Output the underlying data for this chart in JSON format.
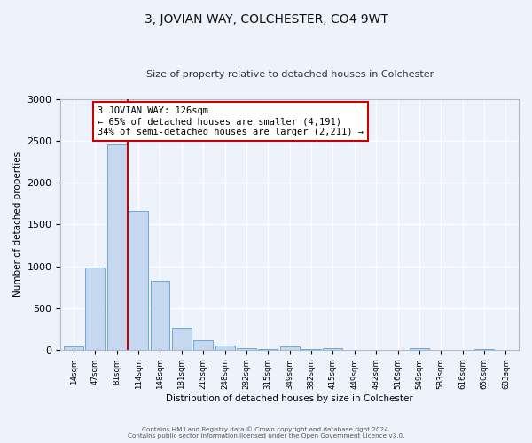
{
  "title": "3, JOVIAN WAY, COLCHESTER, CO4 9WT",
  "subtitle": "Size of property relative to detached houses in Colchester",
  "xlabel": "Distribution of detached houses by size in Colchester",
  "ylabel": "Number of detached properties",
  "bar_labels": [
    "14sqm",
    "47sqm",
    "81sqm",
    "114sqm",
    "148sqm",
    "181sqm",
    "215sqm",
    "248sqm",
    "282sqm",
    "315sqm",
    "349sqm",
    "382sqm",
    "415sqm",
    "449sqm",
    "482sqm",
    "516sqm",
    "549sqm",
    "583sqm",
    "616sqm",
    "650sqm",
    "683sqm"
  ],
  "bar_values": [
    40,
    985,
    2460,
    1660,
    830,
    265,
    115,
    55,
    20,
    5,
    38,
    5,
    20,
    0,
    0,
    0,
    15,
    0,
    0,
    5,
    0
  ],
  "bar_color": "#c5d8f0",
  "bar_edge_color": "#6aaad4",
  "vline_color": "#cc0000",
  "vline_x": 2.5,
  "annotation_text_line1": "3 JOVIAN WAY: 126sqm",
  "annotation_text_line2": "← 65% of detached houses are smaller (4,191)",
  "annotation_text_line3": "34% of semi-detached houses are larger (2,211) →",
  "annotation_box_facecolor": "#ffffff",
  "annotation_box_edgecolor": "#cc0000",
  "ylim": [
    0,
    3000
  ],
  "yticks": [
    0,
    500,
    1000,
    1500,
    2000,
    2500,
    3000
  ],
  "background_color": "#eef2fa",
  "grid_color": "#ffffff",
  "title_fontsize": 10,
  "subtitle_fontsize": 8,
  "footer_line1": "Contains HM Land Registry data © Crown copyright and database right 2024.",
  "footer_line2": "Contains public sector information licensed under the Open Government Licence v3.0."
}
